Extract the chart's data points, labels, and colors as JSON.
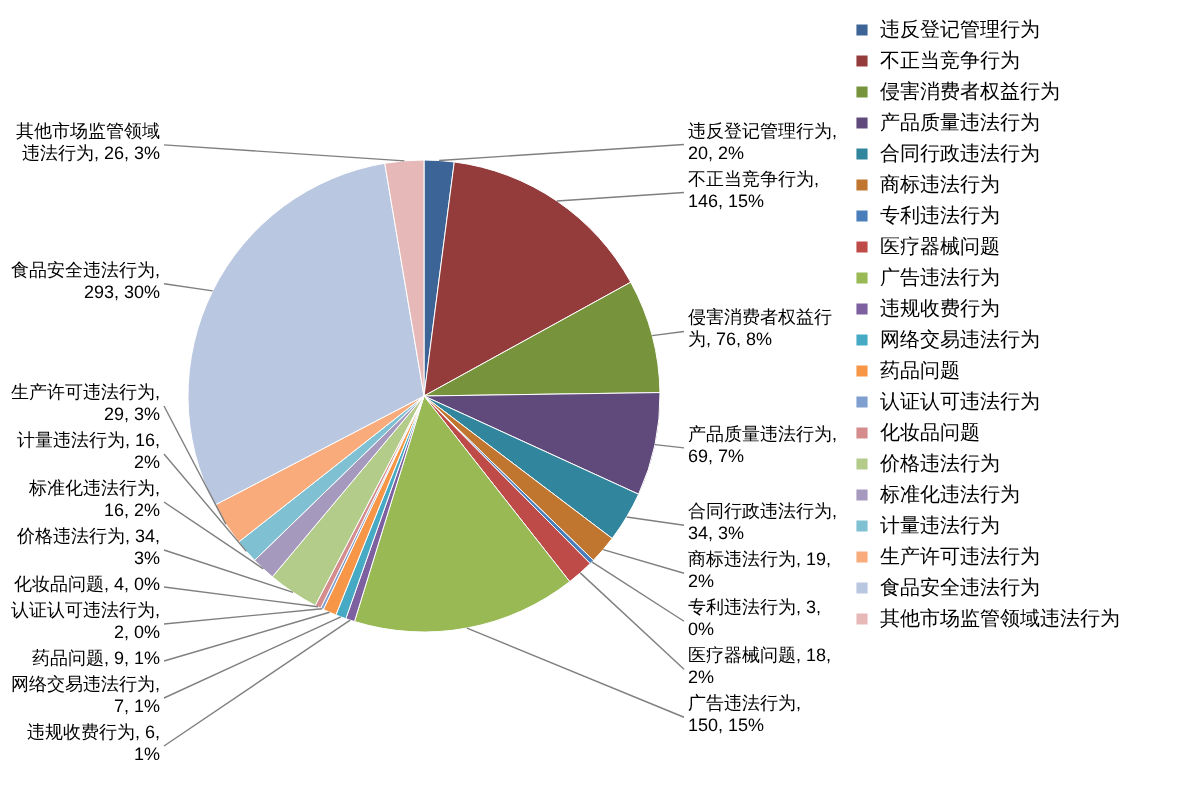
{
  "chart_data": {
    "type": "pie",
    "categories": [
      "违反登记管理行为",
      "不正当竞争行为",
      "侵害消费者权益行为",
      "产品质量违法行为",
      "合同行政违法行为",
      "商标违法行为",
      "专利违法行为",
      "医疗器械问题",
      "广告违法行为",
      "违规收费行为",
      "网络交易违法行为",
      "药品问题",
      "认证认可违法行为",
      "化妆品问题",
      "价格违法行为",
      "标准化违法行为",
      "计量违法行为",
      "生产许可违法行为",
      "食品安全违法行为",
      "其他市场监管领域违法行为"
    ],
    "values": [
      20,
      146,
      76,
      69,
      34,
      19,
      3,
      18,
      150,
      6,
      7,
      9,
      2,
      4,
      34,
      16,
      16,
      29,
      293,
      26
    ],
    "value_labels": [
      "违反登记管理行为, 20, 2%",
      "不正当竞争行为, 146, 15%",
      "侵害消费者权益行为, 76, 8%",
      "产品质量违法行为, 69, 7%",
      "合同行政违法行为, 34, 3%",
      "商标违法行为, 19, 2%",
      "专利违法行为, 3, 0%",
      "医疗器械问题, 18, 2%",
      "广告违法行为, 150, 15%",
      "违规收费行为, 6, 1%",
      "网络交易违法行为, 7, 1%",
      "药品问题, 9, 1%",
      "认证认可违法行为, 2, 0%",
      "化妆品问题, 4, 0%",
      "价格违法行为, 34, 3%",
      "标准化违法行为, 16, 2%",
      "计量违法行为, 16, 2%",
      "生产许可违法行为, 29, 3%",
      "食品安全违法行为, 293, 30%",
      "其他市场监管领域违法行为, 26, 3%"
    ],
    "colors": [
      "#3c6496",
      "#943c3c",
      "#77933c",
      "#604a7b",
      "#31859c",
      "#c0762f",
      "#4a7ebb",
      "#be4b48",
      "#98b954",
      "#7d60a0",
      "#46aac5",
      "#f79646",
      "#7f9fcf",
      "#d48c8c",
      "#b3cc8a",
      "#a599bd",
      "#7fc0d3",
      "#f9ab7c",
      "#b9c7e0",
      "#e6b9b8"
    ],
    "legend": "right"
  }
}
